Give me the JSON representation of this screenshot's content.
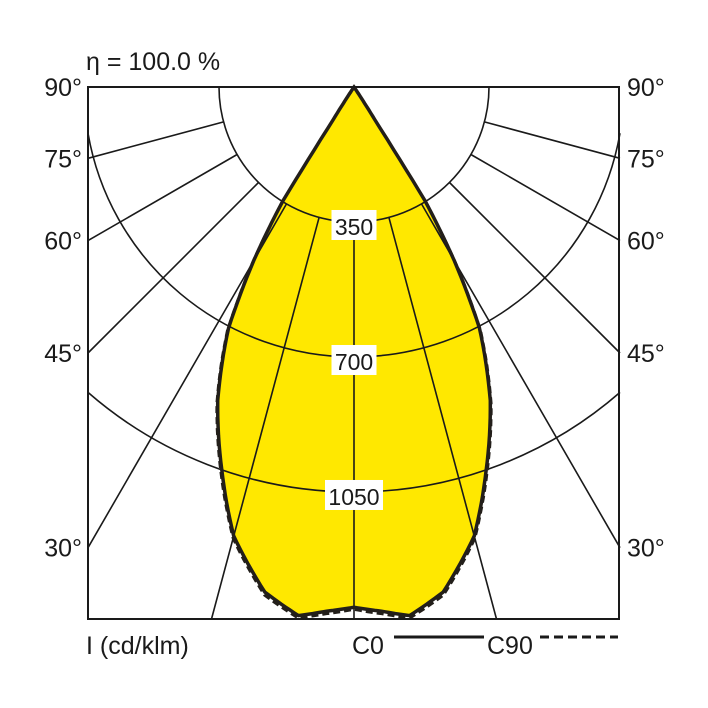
{
  "chart_data": {
    "type": "polar-line",
    "title": "η = 100.0 %",
    "unit_label": "I (cd/klm)",
    "radial_ticks": [
      350,
      700,
      1050
    ],
    "radial_max": 1380,
    "angle_labels": [
      "90°",
      "75°",
      "60°",
      "45°",
      "30°"
    ],
    "angle_label_values": [
      90,
      75,
      60,
      45,
      30
    ],
    "grid_angles": [
      0,
      15,
      30,
      45,
      60,
      75,
      90
    ],
    "fill_color": "#ffe800",
    "series": [
      {
        "name": "C0",
        "style": "solid",
        "angles": [
          0,
          3,
          6,
          10,
          15,
          19,
          23.5,
          27.5,
          30,
          32,
          32.5,
          33.5,
          35,
          90
        ],
        "values": [
          1349,
          1361,
          1378,
          1330,
          1205,
          1052,
          886,
          704,
          520,
          346,
          100,
          20,
          0,
          0
        ]
      },
      {
        "name": "C90",
        "style": "dashed",
        "angles": [
          0,
          3,
          6,
          10,
          15,
          19,
          23.5,
          27.5,
          30,
          32,
          32.5,
          33.5,
          35,
          90
        ],
        "values": [
          1355,
          1368,
          1385,
          1338,
          1212,
          1060,
          893,
          712,
          530,
          356,
          108,
          24,
          0,
          0
        ]
      }
    ]
  }
}
